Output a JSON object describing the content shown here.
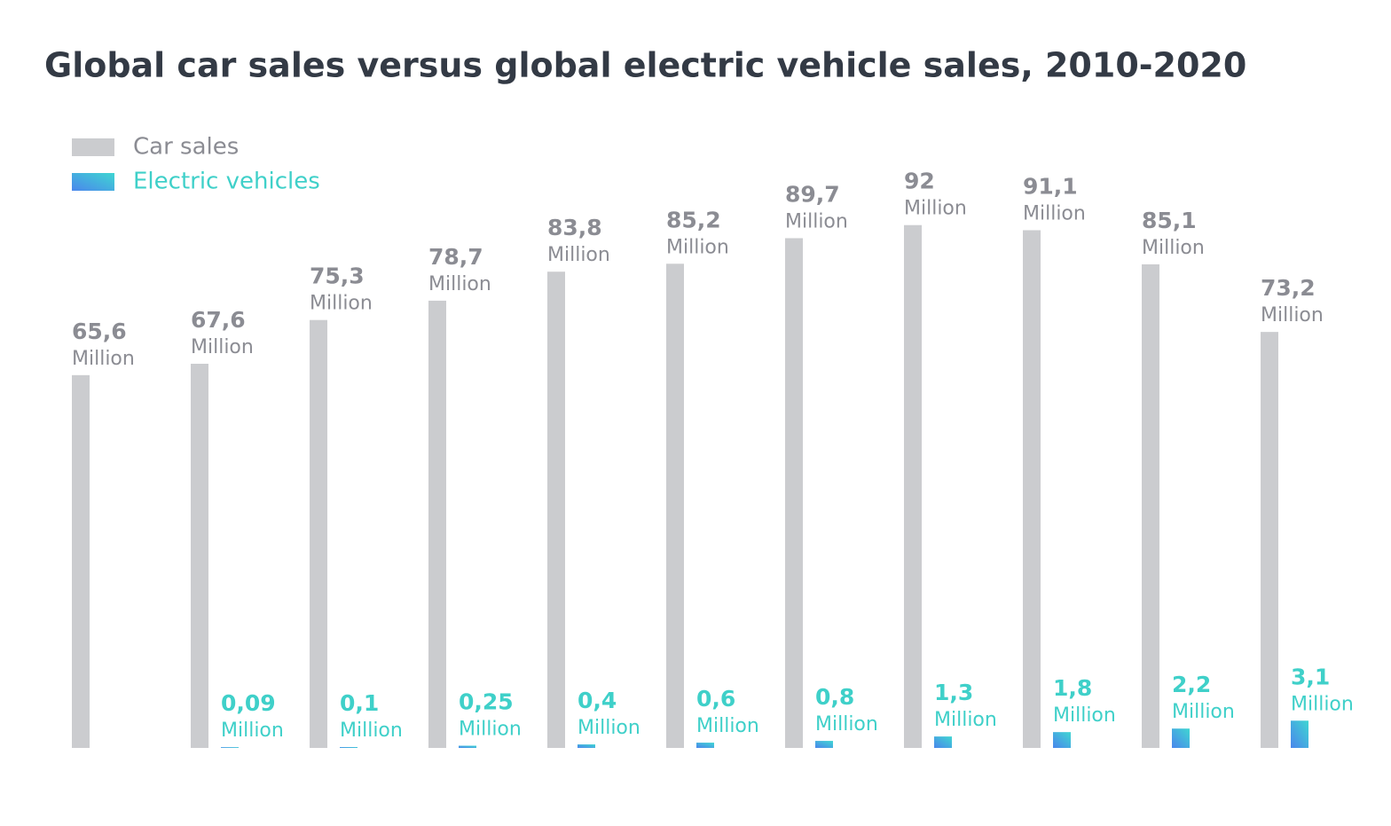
{
  "chart_data": {
    "type": "bar",
    "title": "Global car sales versus global electric vehicle sales, 2010-2020",
    "categories": [
      null,
      null,
      null,
      null,
      null,
      null,
      null,
      null,
      null,
      null,
      null
    ],
    "value_unit": "Million",
    "series": [
      {
        "name": "Car sales",
        "color": "#cbcccf",
        "label_color": "#8b8c93",
        "values": [
          65.6,
          67.6,
          75.3,
          78.7,
          83.8,
          85.2,
          89.7,
          92,
          91.1,
          85.1,
          73.2
        ],
        "value_labels": [
          "65,6",
          "67,6",
          "75,3",
          "78,7",
          "83,8",
          "85,2",
          "89,7",
          "92",
          "91,1",
          "85,1",
          "73,2"
        ]
      },
      {
        "name": "Electric vehicles",
        "color": "#3fd0c9",
        "label_color": "#3fd0c9",
        "axis": "y2",
        "values": [
          null,
          0.09,
          0.1,
          0.25,
          0.4,
          0.6,
          0.8,
          1.3,
          1.8,
          2.2,
          3.1
        ],
        "value_labels": [
          null,
          "0,09",
          "0,1",
          "0,25",
          "0,4",
          "0,6",
          "0,8",
          "1,3",
          "1,8",
          "2,2",
          "3,1"
        ]
      }
    ],
    "ylim": [
      0,
      116
    ],
    "y2lim": [
      0,
      75
    ],
    "grid": false
  }
}
